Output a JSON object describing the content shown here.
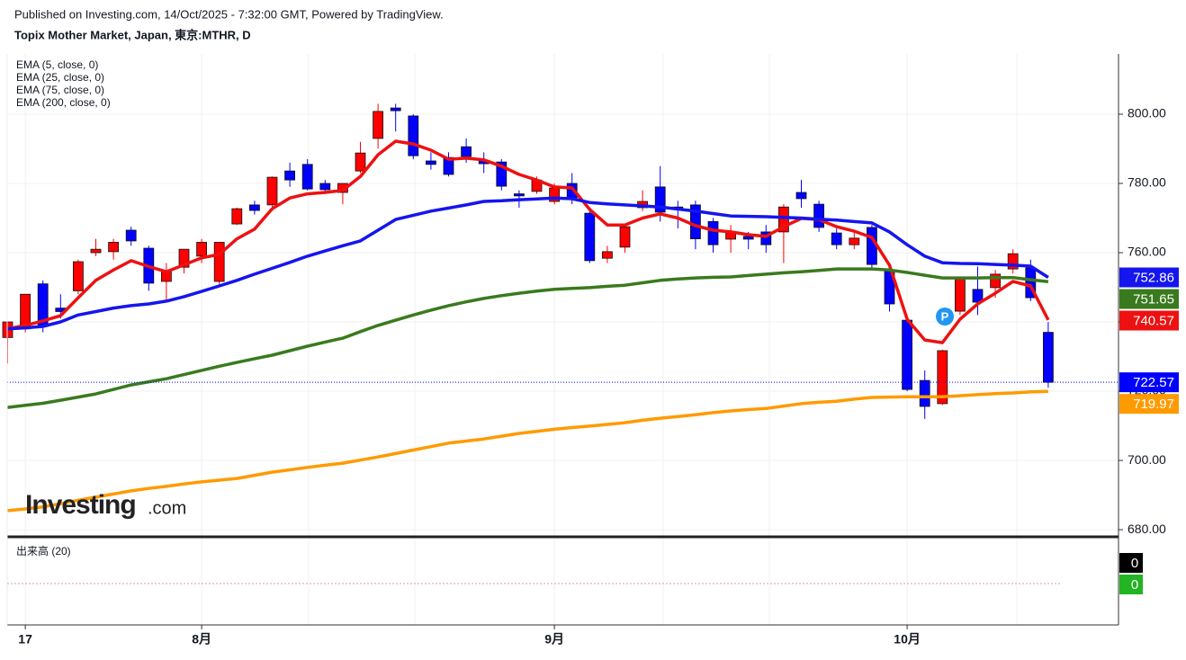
{
  "header": {
    "published": "Published on Investing.com, 14/Oct/2025 - 7:32:00 GMT, Powered by TradingView.",
    "watermark": "Investing",
    "watermark_suffix": ".com",
    "annotation": "P"
  },
  "chart_data": [
    {
      "type": "candlestick",
      "title": "Topix Mother Market, Japan, 東京:MTHR, D",
      "categories": [
        null,
        "17",
        null,
        null,
        null,
        null,
        null,
        null,
        null,
        null,
        null,
        "8月",
        null,
        null,
        null,
        null,
        null,
        null,
        null,
        null,
        null,
        null,
        null,
        null,
        null,
        null,
        null,
        null,
        null,
        null,
        null,
        "9月",
        null,
        null,
        null,
        null,
        null,
        null,
        null,
        null,
        null,
        null,
        null,
        null,
        null,
        null,
        null,
        null,
        null,
        null,
        null,
        "10月",
        null,
        null,
        null,
        null,
        null,
        null,
        null,
        null
      ],
      "open": [
        735.5,
        738,
        751,
        744,
        749,
        760,
        760.3,
        766.5,
        761.3,
        751.7,
        755.8,
        759,
        751.7,
        768.3,
        773.8,
        773.8,
        783.6,
        785.5,
        780,
        777.4,
        783.6,
        793,
        801.8,
        799.5,
        786.5,
        787.5,
        790.6,
        786.5,
        786.2,
        777,
        777.7,
        774.8,
        780,
        771.4,
        758.4,
        761.6,
        773,
        779,
        773.2,
        773.8,
        769,
        763.9,
        764.7,
        766,
        766,
        777.4,
        774,
        765.7,
        762.3,
        767.3,
        755,
        740.5,
        723.1,
        716.4,
        743.1,
        749.4,
        749.9,
        755.3,
        755.6,
        737
      ],
      "high": [
        740,
        748,
        752,
        748,
        758,
        764,
        764,
        767.5,
        762,
        757,
        761,
        764,
        763,
        773,
        775,
        782,
        786,
        787,
        781,
        780,
        792,
        803,
        803,
        800,
        789,
        789,
        793,
        789,
        787,
        778,
        782,
        780,
        783,
        772,
        762,
        768,
        778,
        785,
        775,
        775,
        770,
        768,
        766,
        768,
        774,
        781,
        775,
        767,
        766,
        768,
        756,
        742,
        726,
        732,
        753,
        756,
        755,
        761,
        758,
        740
      ],
      "low": [
        728,
        737,
        737,
        741,
        748,
        759,
        758,
        762,
        749,
        746,
        754,
        757,
        750,
        768,
        771,
        772,
        779,
        778,
        777,
        774,
        783,
        790,
        795,
        787,
        784,
        782,
        786,
        783,
        778,
        773,
        777,
        774,
        774,
        757,
        757,
        760,
        772,
        769,
        767,
        761,
        760,
        760,
        761,
        760,
        757,
        773,
        766,
        761,
        761,
        755,
        743,
        720,
        712,
        716,
        742,
        742,
        747,
        754,
        746,
        721
      ],
      "close": [
        740,
        748,
        738.7,
        743,
        757.4,
        761,
        763,
        763.4,
        751.2,
        754.5,
        761,
        763,
        763,
        772.7,
        772.2,
        781.8,
        781,
        778.4,
        778.2,
        780,
        788.8,
        800.8,
        801,
        788,
        785.5,
        782.6,
        787.8,
        785.7,
        779.2,
        776.4,
        781,
        778.7,
        775.3,
        757.7,
        760.3,
        767.5,
        774.8,
        771.7,
        772.5,
        764,
        762.3,
        766,
        763.9,
        762.3,
        773.2,
        775.6,
        767.3,
        762.3,
        764.2,
        756.6,
        745.2,
        720.5,
        715.6,
        731.7,
        752.5,
        745.7,
        753.8,
        759.7,
        747,
        722.57
      ],
      "up_color": "#ff0000",
      "down_color": "#0000ff",
      "series": [
        {
          "name": "EMA (5, close, 0)",
          "color": "#ee1111",
          "values": [
            738,
            739,
            740.3,
            741.8,
            747,
            752,
            755,
            757.7,
            756,
            754.5,
            756.5,
            758.5,
            759.5,
            764,
            766.8,
            772.7,
            775.8,
            777,
            777.4,
            778,
            782,
            788.3,
            792.2,
            791.4,
            789.6,
            787,
            787.3,
            786.8,
            785,
            782.6,
            781,
            779,
            778.7,
            772.5,
            768,
            768,
            770,
            771.2,
            770,
            767.8,
            766.5,
            766,
            765.2,
            764.7,
            767.5,
            769.9,
            769.6,
            767.5,
            766.2,
            764.4,
            756.4,
            740.8,
            734.8,
            734,
            740.8,
            745.2,
            748.3,
            751.7,
            750.4,
            740.57
          ]
        },
        {
          "name": "EMA (25, close, 0)",
          "color": "#1515ee",
          "values": [
            738,
            738.3,
            738.7,
            740,
            742,
            743,
            744,
            744.7,
            745.2,
            746,
            747.3,
            748.8,
            750.4,
            752,
            753.8,
            755.5,
            757.2,
            759,
            760.5,
            762,
            763.4,
            766.5,
            769.6,
            770.8,
            772,
            772.9,
            773.8,
            774.8,
            775,
            775.3,
            775.5,
            775.8,
            775.6,
            774.5,
            774.1,
            773.8,
            773.5,
            773.2,
            772.6,
            772,
            771.3,
            770.6,
            770.5,
            770.4,
            770.2,
            770,
            769.7,
            769.4,
            769,
            768.6,
            766,
            762.3,
            759,
            757.1,
            756.9,
            756.8,
            756.6,
            756.4,
            756.1,
            752.86
          ]
        },
        {
          "name": "EMA (75, close, 0)",
          "color": "#3a7a1e",
          "values": [
            715.3,
            715.9,
            716.5,
            717.4,
            718.3,
            719.2,
            720.5,
            721.8,
            722.7,
            723.6,
            724.8,
            726,
            727.2,
            728.3,
            729.4,
            730.4,
            731.7,
            733,
            734.2,
            735.3,
            737.2,
            739,
            740.5,
            742,
            743.4,
            744.7,
            745.8,
            746.8,
            747.6,
            748.3,
            748.9,
            749.4,
            749.7,
            749.9,
            750.3,
            750.6,
            751.3,
            752,
            752.4,
            752.7,
            752.9,
            753,
            753.4,
            753.8,
            754.2,
            754.5,
            754.9,
            755.3,
            755.3,
            755.3,
            755,
            754.3,
            753.5,
            752.7,
            752.7,
            752.7,
            752.8,
            752.8,
            752.2,
            751.65
          ]
        },
        {
          "name": "EMA (200, close, 0)",
          "color": "#ff9a00",
          "values": [
            685.5,
            686,
            686.6,
            687.5,
            688.5,
            689.4,
            690.3,
            691.2,
            691.9,
            692.5,
            693.2,
            693.8,
            694.3,
            694.8,
            695.7,
            696.6,
            697.3,
            698,
            698.6,
            699.2,
            700.1,
            701,
            702,
            703,
            704,
            705,
            705.6,
            706.2,
            707,
            707.8,
            708.4,
            709,
            709.5,
            709.9,
            710.4,
            710.9,
            711.6,
            712.2,
            712.7,
            713.2,
            713.8,
            714.3,
            714.7,
            715,
            715.7,
            716.4,
            716.8,
            717.1,
            717.7,
            718.2,
            718.3,
            718.4,
            718.4,
            718.4,
            718.7,
            719,
            719.3,
            719.5,
            719.8,
            719.97
          ]
        }
      ],
      "ylim": [
        678.2,
        817.4
      ],
      "yticks": [
        {
          "value": 680,
          "label": "680.00"
        },
        {
          "value": 700,
          "label": "700.00"
        },
        {
          "value": 720,
          "label": "720.00"
        },
        {
          "value": 740,
          "label": "740.00"
        },
        {
          "value": 760,
          "label": "760.00"
        },
        {
          "value": 780,
          "label": "780.00"
        },
        {
          "value": 800,
          "label": "800.00"
        }
      ],
      "grid": true
    },
    {
      "type": "volume",
      "title": "出来高 (20)",
      "markers": [
        {
          "value": 0,
          "color": "#000000"
        },
        {
          "value": 0,
          "color": "#22b422"
        }
      ]
    }
  ]
}
